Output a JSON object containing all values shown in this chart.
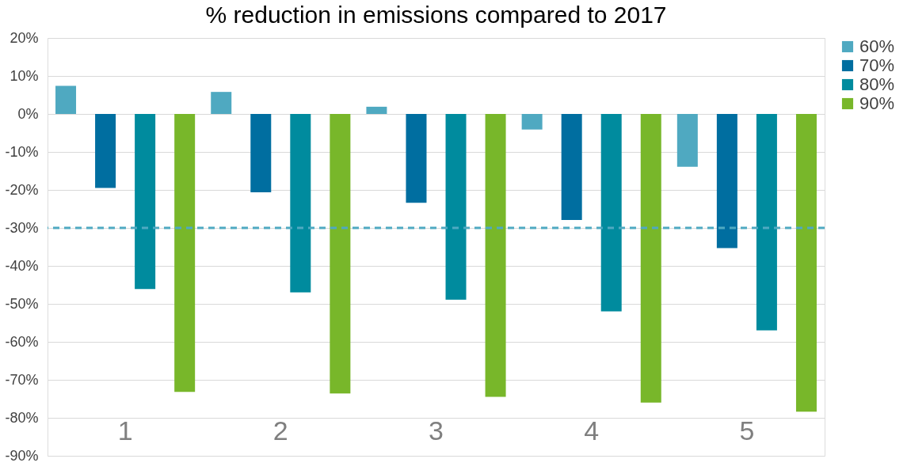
{
  "chart_data": {
    "type": "bar",
    "title": "% reduction in emissions compared to 2017",
    "categories": [
      "1",
      "2",
      "3",
      "4",
      "5"
    ],
    "series": [
      {
        "name": "60%",
        "color": "#4fa9c1",
        "values": [
          7.4,
          5.8,
          1.9,
          -4.1,
          -13.9
        ]
      },
      {
        "name": "70%",
        "color": "#006ea0",
        "values": [
          -19.5,
          -20.6,
          -23.4,
          -27.9,
          -35.3
        ]
      },
      {
        "name": "80%",
        "color": "#008b9e",
        "values": [
          -46.1,
          -47,
          -48.9,
          -52,
          -57
        ]
      },
      {
        "name": "90%",
        "color": "#78b72a",
        "values": [
          -73.2,
          -73.6,
          -74.5,
          -76,
          -78.4
        ]
      }
    ],
    "ylim": [
      -90,
      20
    ],
    "yticks": [
      {
        "value": 20,
        "label": "20%"
      },
      {
        "value": 10,
        "label": "10%"
      },
      {
        "value": 0,
        "label": "0%"
      },
      {
        "value": -10,
        "label": "-10%"
      },
      {
        "value": -20,
        "label": "-20%"
      },
      {
        "value": -30,
        "label": "-30%"
      },
      {
        "value": -40,
        "label": "-40%"
      },
      {
        "value": -50,
        "label": "-50%"
      },
      {
        "value": -60,
        "label": "-60%"
      },
      {
        "value": -70,
        "label": "-70%"
      },
      {
        "value": -80,
        "label": "-80%"
      },
      {
        "value": -90,
        "label": "-90%"
      }
    ],
    "ref_lines": [
      {
        "axis": "y",
        "value": -30,
        "color": "#4fa9c1",
        "line_style": "dashed"
      }
    ],
    "grid": "y",
    "legend": "right"
  }
}
